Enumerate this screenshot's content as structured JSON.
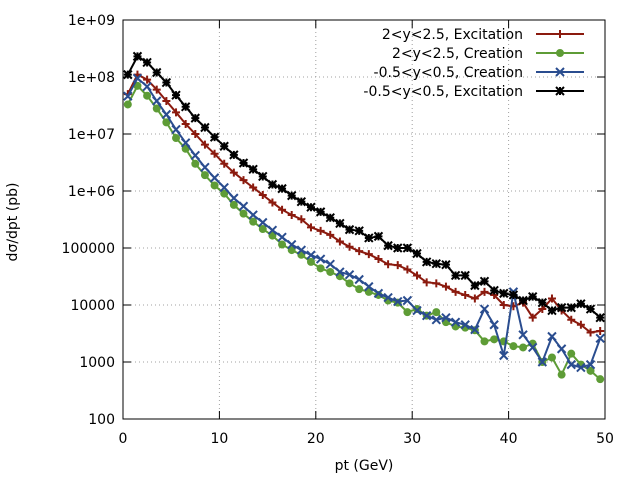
{
  "chart_data": {
    "type": "line",
    "title": "",
    "xlabel": "pt (GeV)",
    "ylabel": "dσ/dpt (pb)",
    "xlim": [
      0,
      50
    ],
    "ylim": [
      100,
      1000000000
    ],
    "yscale": "log",
    "grid": true,
    "legend_position": "top-right",
    "x_ticks": [
      "0",
      "10",
      "20",
      "30",
      "40",
      "50"
    ],
    "y_ticks": [
      "100",
      "1000",
      "10000",
      "100000",
      "1e+06",
      "1e+07",
      "1e+08",
      "1e+09"
    ],
    "series": [
      {
        "name": "2<y<2.5, Excitation",
        "color": "#8b1a0e",
        "marker": "plus",
        "x": [
          0.5,
          1.5,
          2.5,
          3.5,
          4.5,
          5.5,
          6.5,
          7.5,
          8.5,
          9.5,
          10.5,
          11.5,
          12.5,
          13.5,
          14.5,
          15.5,
          16.5,
          17.5,
          18.5,
          19.5,
          20.5,
          21.5,
          22.5,
          23.5,
          24.5,
          25.5,
          26.5,
          27.5,
          28.5,
          29.5,
          30.5,
          31.5,
          32.5,
          33.5,
          34.5,
          35.5,
          36.5,
          37.5,
          38.5,
          39.5,
          40.5,
          41.5,
          42.5,
          43.5,
          44.5,
          45.5,
          46.5,
          47.5,
          48.5,
          49.5
        ],
        "values": [
          50000000,
          110000000,
          90000000,
          60000000,
          38000000,
          24000000,
          15000000,
          10000000,
          6500000,
          4500000,
          3000000,
          2100000,
          1550000,
          1150000,
          850000,
          630000,
          470000,
          380000,
          320000,
          230000,
          200000,
          170000,
          130000,
          105000,
          88000,
          78000,
          64000,
          52000,
          50000,
          42000,
          33000,
          25000,
          24000,
          21000,
          17000,
          15000,
          13000,
          17000,
          15000,
          10000,
          9500,
          11000,
          6000,
          8500,
          13000,
          8000,
          5500,
          4500,
          3300,
          3500
        ]
      },
      {
        "name": "2<y<2.5, Creation",
        "color": "#5e9c36",
        "marker": "circle",
        "x": [
          0.5,
          1.5,
          2.5,
          3.5,
          4.5,
          5.5,
          6.5,
          7.5,
          8.5,
          9.5,
          10.5,
          11.5,
          12.5,
          13.5,
          14.5,
          15.5,
          16.5,
          17.5,
          18.5,
          19.5,
          20.5,
          21.5,
          22.5,
          23.5,
          24.5,
          25.5,
          26.5,
          27.5,
          28.5,
          29.5,
          30.5,
          31.5,
          32.5,
          33.5,
          34.5,
          35.5,
          36.5,
          37.5,
          38.5,
          39.5,
          40.5,
          41.5,
          42.5,
          43.5,
          44.5,
          45.5,
          46.5,
          47.5,
          48.5,
          49.5
        ],
        "values": [
          33000000,
          70000000,
          47000000,
          28000000,
          16000000,
          8500000,
          5500000,
          3000000,
          1900000,
          1250000,
          900000,
          570000,
          400000,
          290000,
          215000,
          165000,
          115000,
          92000,
          76000,
          57000,
          44000,
          38000,
          32000,
          24000,
          19000,
          17000,
          15000,
          12000,
          11000,
          7500,
          8500,
          6500,
          7500,
          5000,
          4200,
          4000,
          3600,
          2300,
          2500,
          2300,
          1900,
          1800,
          2100,
          1000,
          1200,
          600,
          1400,
          900,
          700,
          500
        ]
      },
      {
        "name": "-0.5<y<0.5, Creation",
        "color": "#2a4d8f",
        "marker": "x",
        "x": [
          0.5,
          1.5,
          2.5,
          3.5,
          4.5,
          5.5,
          6.5,
          7.5,
          8.5,
          9.5,
          10.5,
          11.5,
          12.5,
          13.5,
          14.5,
          15.5,
          16.5,
          17.5,
          18.5,
          19.5,
          20.5,
          21.5,
          22.5,
          23.5,
          24.5,
          25.5,
          26.5,
          27.5,
          28.5,
          29.5,
          30.5,
          31.5,
          32.5,
          33.5,
          34.5,
          35.5,
          36.5,
          37.5,
          38.5,
          39.5,
          40.5,
          41.5,
          42.5,
          43.5,
          44.5,
          45.5,
          46.5,
          47.5,
          48.5,
          49.5
        ],
        "values": [
          46000000,
          95000000,
          68000000,
          38000000,
          22000000,
          12000000,
          7000000,
          4200000,
          2600000,
          1700000,
          1150000,
          750000,
          540000,
          380000,
          280000,
          205000,
          155000,
          115000,
          92000,
          75000,
          64000,
          52000,
          38000,
          34000,
          28000,
          21000,
          16000,
          13500,
          11500,
          12000,
          8000,
          6500,
          5500,
          6000,
          5000,
          4500,
          3700,
          8500,
          4500,
          1300,
          17000,
          3000,
          1800,
          1000,
          2800,
          1700,
          900,
          800,
          900,
          2600
        ]
      },
      {
        "name": "-0.5<y<0.5, Excitation",
        "color": "#000000",
        "marker": "star",
        "x": [
          0.5,
          1.5,
          2.5,
          3.5,
          4.5,
          5.5,
          6.5,
          7.5,
          8.5,
          9.5,
          10.5,
          11.5,
          12.5,
          13.5,
          14.5,
          15.5,
          16.5,
          17.5,
          18.5,
          19.5,
          20.5,
          21.5,
          22.5,
          23.5,
          24.5,
          25.5,
          26.5,
          27.5,
          28.5,
          29.5,
          30.5,
          31.5,
          32.5,
          33.5,
          34.5,
          35.5,
          36.5,
          37.5,
          38.5,
          39.5,
          40.5,
          41.5,
          42.5,
          43.5,
          44.5,
          45.5,
          46.5,
          47.5,
          48.5,
          49.5
        ],
        "values": [
          110000000,
          230000000,
          180000000,
          120000000,
          80000000,
          48000000,
          30000000,
          19000000,
          13000000,
          8800000,
          6100000,
          4300000,
          3100000,
          2400000,
          1800000,
          1300000,
          1100000,
          830000,
          650000,
          520000,
          430000,
          340000,
          270000,
          210000,
          200000,
          150000,
          160000,
          110000,
          100000,
          100000,
          80000,
          57000,
          53000,
          51000,
          33000,
          33000,
          22000,
          26000,
          18000,
          16000,
          15000,
          12000,
          14000,
          11000,
          8000,
          9000,
          9000,
          10500,
          8500,
          6000
        ]
      }
    ]
  }
}
